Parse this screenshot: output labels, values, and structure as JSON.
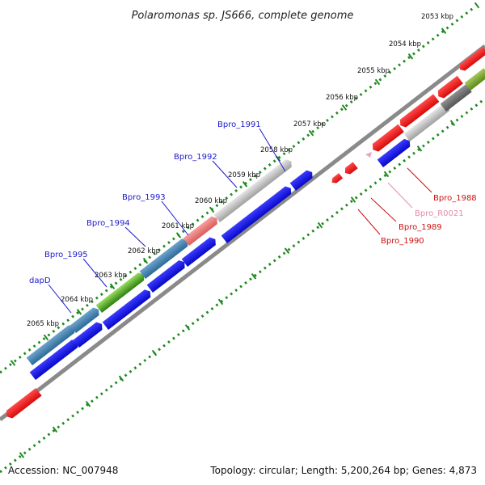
{
  "title": "Polaromonas sp. JS666, complete genome",
  "footer": {
    "accession": "Accession: NC_007948",
    "summary": "Topology: circular; Length: 5,200,264 bp; Genes: 4,873"
  },
  "colors": {
    "blue": "#1010e0",
    "red": "#f21212",
    "steel": "#3e7eaa",
    "green": "#3f9c1a",
    "gray": "#b9b9b9",
    "salmon": "#e87878",
    "darkgray": "#6e6e6e",
    "olive": "#78a030",
    "pink": "#f0a0c8",
    "backbone": "#8a8a8a",
    "ticks": "#1f8a1f"
  },
  "scale_labels": [
    "2053 kbp",
    "2054 kbp",
    "2055 kbp",
    "2056 kbp",
    "2057 kbp",
    "2058 kbp",
    "2059 kbp",
    "2060 kbp",
    "2061 kbp",
    "2062 kbp",
    "2063 kbp",
    "2064 kbp",
    "2065 kbp"
  ],
  "gene_labels": {
    "bpro_1991": "Bpro_1991",
    "bpro_1992": "Bpro_1992",
    "bpro_1993": "Bpro_1993",
    "bpro_1994": "Bpro_1994",
    "bpro_1995": "Bpro_1995",
    "dapd": "dapD",
    "bpro_1988": "Bpro_1988",
    "bpro_r0021": "Bpro_R0021",
    "bpro_1989": "Bpro_1989",
    "bpro_1990": "Bpro_1990"
  }
}
